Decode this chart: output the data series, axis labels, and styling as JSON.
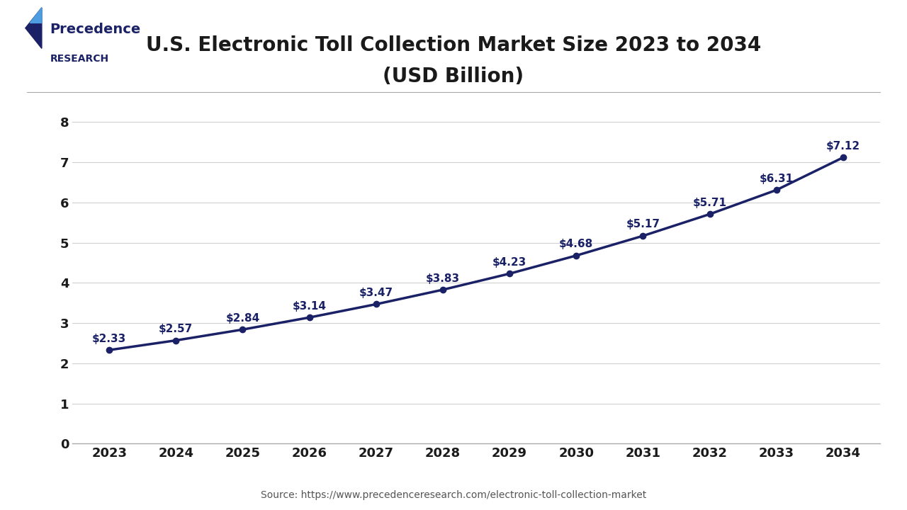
{
  "title_line1": "U.S. Electronic Toll Collection Market Size 2023 to 2034",
  "title_line2": "(USD Billion)",
  "years": [
    2023,
    2024,
    2025,
    2026,
    2027,
    2028,
    2029,
    2030,
    2031,
    2032,
    2033,
    2034
  ],
  "values": [
    2.33,
    2.57,
    2.84,
    3.14,
    3.47,
    3.83,
    4.23,
    4.68,
    5.17,
    5.71,
    6.31,
    7.12
  ],
  "labels": [
    "$2.33",
    "$2.57",
    "$2.84",
    "$3.14",
    "$3.47",
    "$3.83",
    "$4.23",
    "$4.68",
    "$5.17",
    "$5.71",
    "$6.31",
    "$7.12"
  ],
  "line_color": "#1a2166",
  "marker_color": "#1a2166",
  "background_color": "#ffffff",
  "plot_bg_color": "#ffffff",
  "grid_color": "#d0d0d0",
  "yticks": [
    0,
    1,
    2,
    3,
    4,
    5,
    6,
    7,
    8
  ],
  "ylim": [
    0,
    8.5
  ],
  "source_text": "Source: https://www.precedenceresearch.com/electronic-toll-collection-market",
  "title_color": "#1a1a1a",
  "tick_color": "#1a1a1a",
  "label_fontsize": 11,
  "tick_fontsize": 13,
  "title_fontsize_line1": 20,
  "title_fontsize_line2": 20,
  "source_fontsize": 10,
  "logo_text_precedence": "Precedence",
  "logo_text_research": "RESEARCH"
}
